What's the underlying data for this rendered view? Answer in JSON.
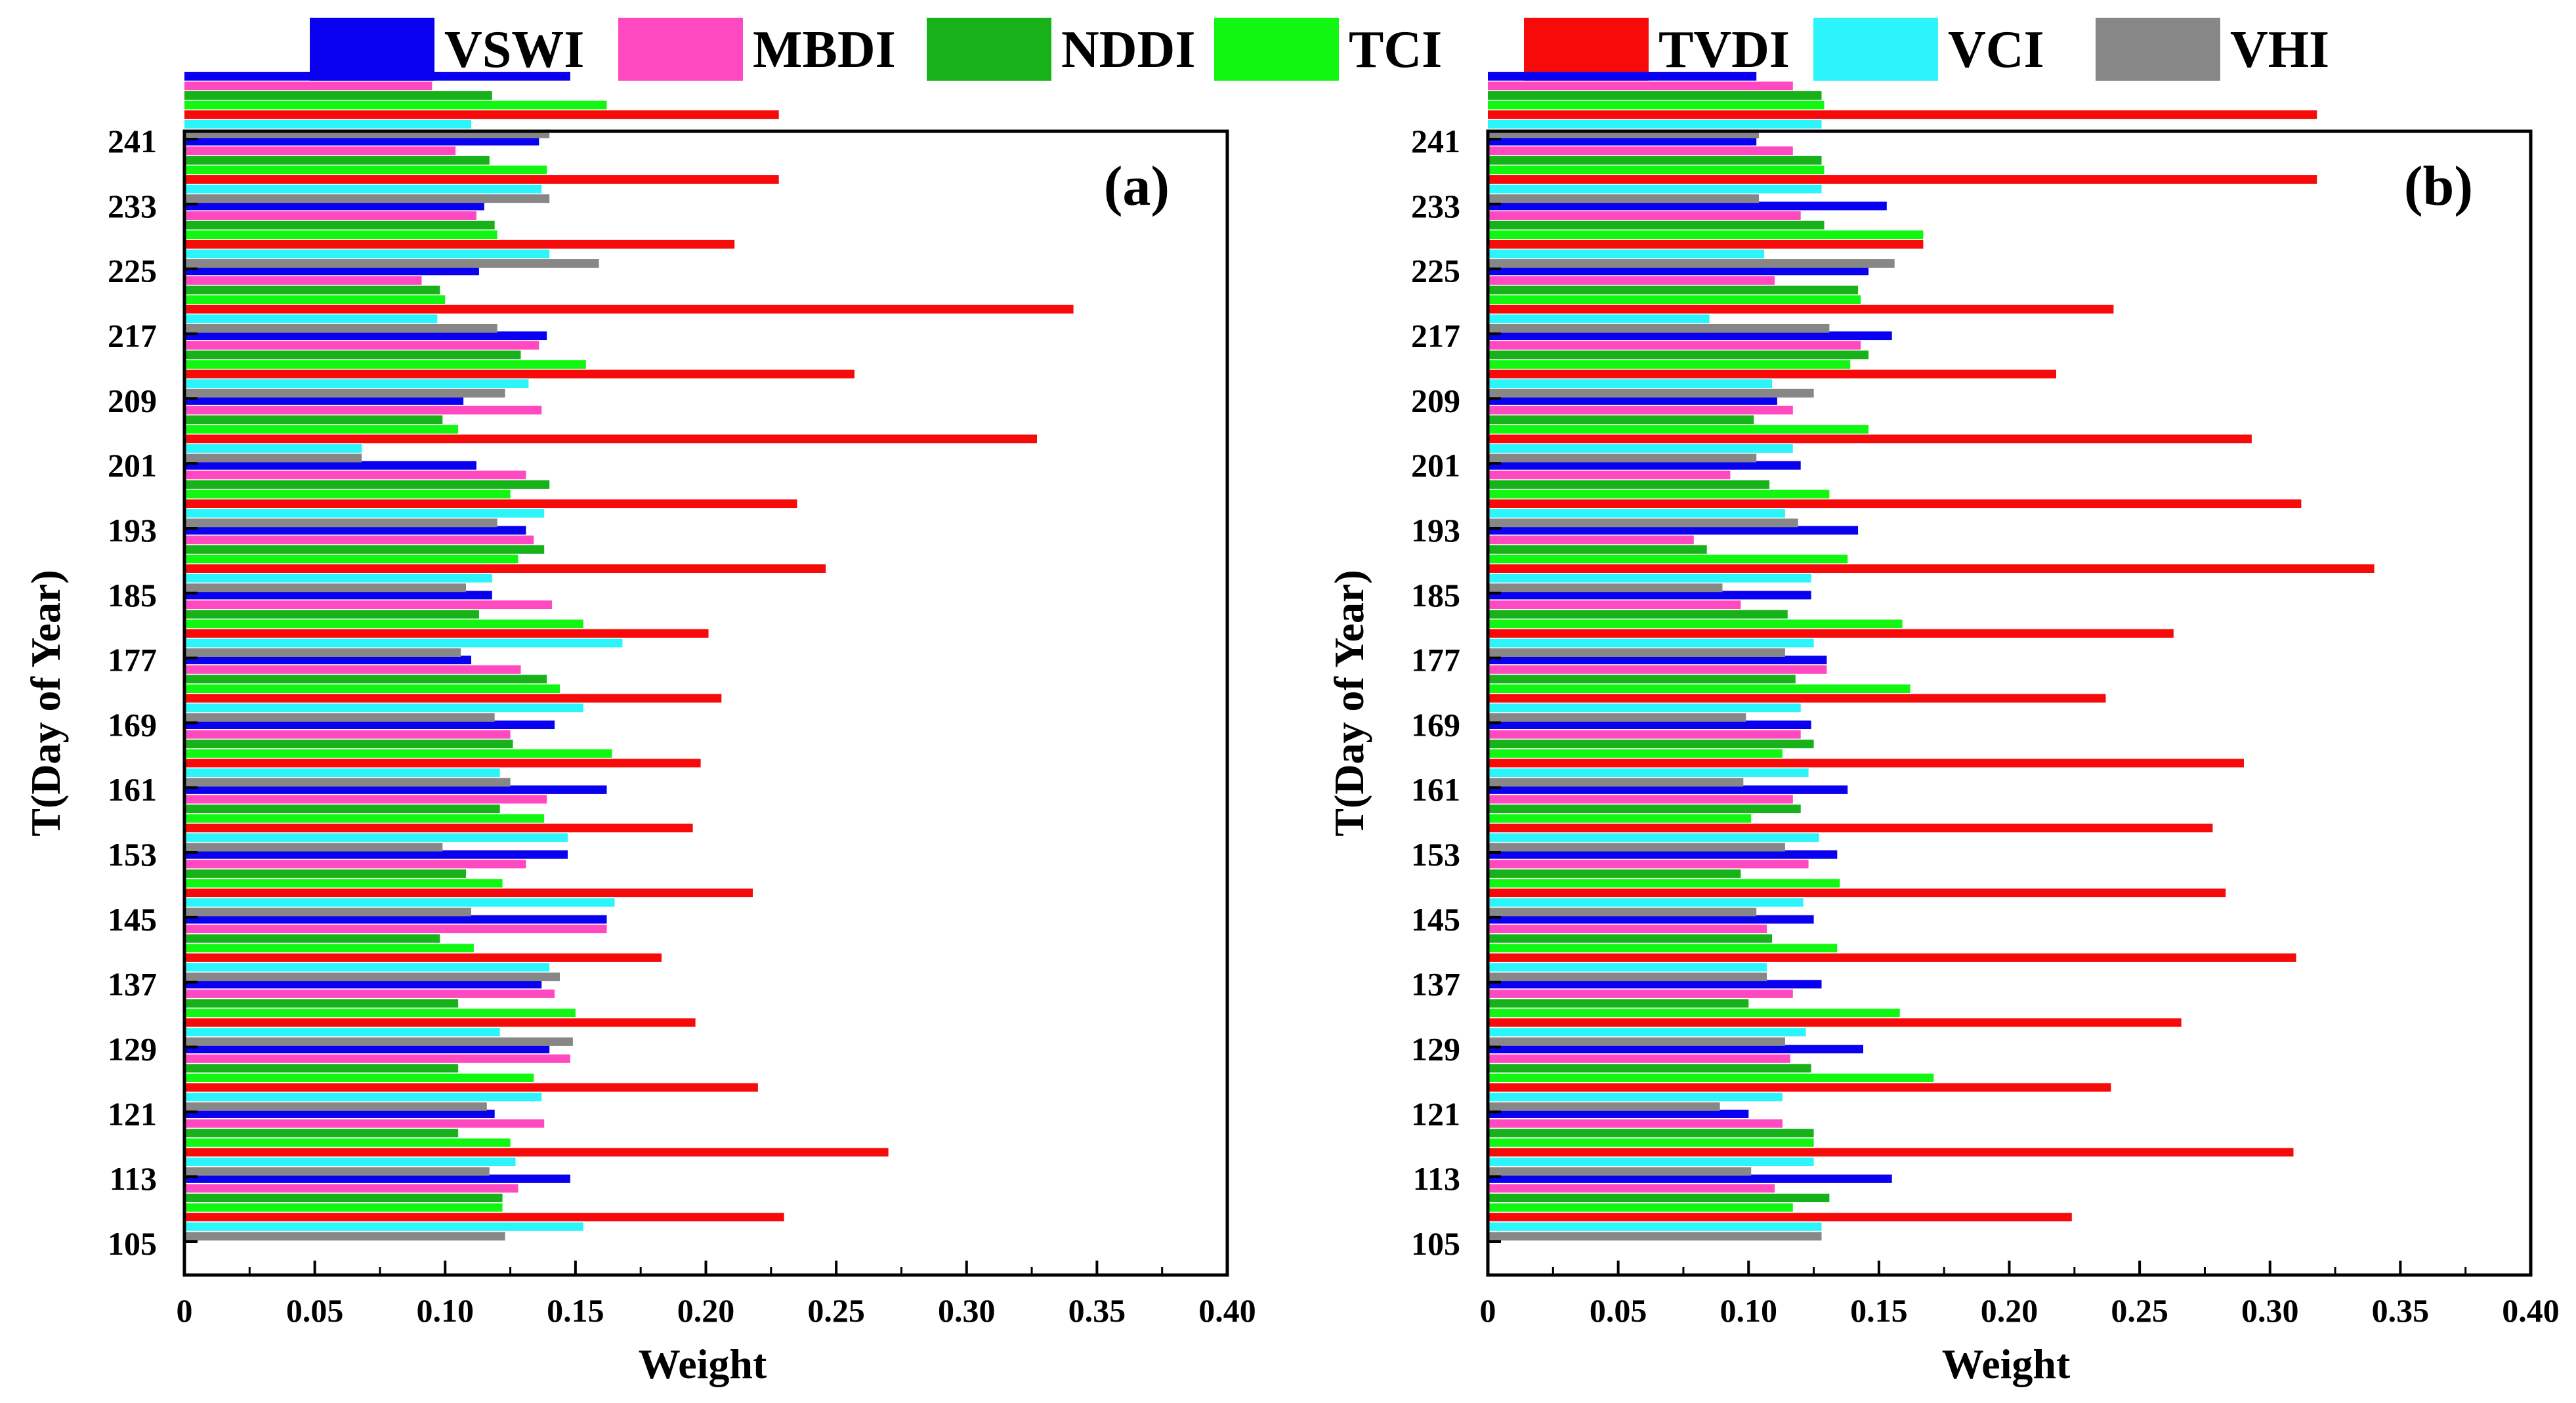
{
  "legend": [
    {
      "name": "VSWI",
      "color": "#0a00f0"
    },
    {
      "name": "MBDI",
      "color": "#ff49c0"
    },
    {
      "name": "NDDI",
      "color": "#17b21a"
    },
    {
      "name": "TCI",
      "color": "#12f712"
    },
    {
      "name": "TVDI",
      "color": "#f60a0a"
    },
    {
      "name": "VCI",
      "color": "#2cf4fb"
    },
    {
      "name": "VHI",
      "color": "#878787"
    }
  ],
  "chart_data": [
    {
      "type": "bar",
      "orientation": "horizontal",
      "panel_label": "(a)",
      "xlabel": "Weight",
      "ylabel": "T(Day of Year)",
      "xlim": [
        0,
        0.4
      ],
      "xticks": [
        "0",
        "0.05",
        "0.10",
        "0.15",
        "0.20",
        "0.25",
        "0.30",
        "0.35",
        "0.40"
      ],
      "categories": [
        "105",
        "113",
        "121",
        "129",
        "137",
        "145",
        "153",
        "161",
        "169",
        "177",
        "185",
        "193",
        "201",
        "209",
        "217",
        "225",
        "233",
        "241"
      ],
      "series": [
        {
          "name": "VSWI",
          "values": [
            0.148,
            0.119,
            0.14,
            0.137,
            0.162,
            0.147,
            0.162,
            0.142,
            0.11,
            0.118,
            0.131,
            0.112,
            0.107,
            0.139,
            0.113,
            0.115,
            0.136,
            0.148
          ]
        },
        {
          "name": "MBDI",
          "values": [
            0.128,
            0.138,
            0.148,
            0.142,
            0.162,
            0.131,
            0.139,
            0.125,
            0.129,
            0.141,
            0.134,
            0.131,
            0.137,
            0.136,
            0.091,
            0.112,
            0.104,
            0.095
          ]
        },
        {
          "name": "NDDI",
          "values": [
            0.122,
            0.105,
            0.105,
            0.105,
            0.098,
            0.108,
            0.121,
            0.126,
            0.139,
            0.113,
            0.138,
            0.14,
            0.099,
            0.129,
            0.098,
            0.119,
            0.117,
            0.118
          ]
        },
        {
          "name": "TCI",
          "values": [
            0.122,
            0.125,
            0.134,
            0.15,
            0.111,
            0.122,
            0.138,
            0.164,
            0.144,
            0.153,
            0.128,
            0.125,
            0.105,
            0.154,
            0.1,
            0.12,
            0.139,
            0.162
          ]
        },
        {
          "name": "TVDI",
          "values": [
            0.23,
            0.27,
            0.22,
            0.196,
            0.183,
            0.218,
            0.195,
            0.198,
            0.206,
            0.201,
            0.246,
            0.235,
            0.327,
            0.257,
            0.341,
            0.211,
            0.228,
            0.228
          ]
        },
        {
          "name": "VCI",
          "values": [
            0.153,
            0.127,
            0.137,
            0.121,
            0.14,
            0.165,
            0.147,
            0.121,
            0.153,
            0.168,
            0.118,
            0.138,
            0.068,
            0.132,
            0.097,
            0.14,
            0.137,
            0.11
          ]
        },
        {
          "name": "VHI",
          "values": [
            0.123,
            0.117,
            0.116,
            0.149,
            0.144,
            0.11,
            0.099,
            0.125,
            0.119,
            0.106,
            0.108,
            0.12,
            0.068,
            0.123,
            0.12,
            0.159,
            0.14,
            0.14
          ]
        }
      ]
    },
    {
      "type": "bar",
      "orientation": "horizontal",
      "panel_label": "(b)",
      "xlabel": "Weight",
      "ylabel": "T(Day of Year)",
      "xlim": [
        0,
        0.4
      ],
      "xticks": [
        "0",
        "0.05",
        "0.10",
        "0.15",
        "0.20",
        "0.25",
        "0.30",
        "0.35",
        "0.40"
      ],
      "categories": [
        "105",
        "113",
        "121",
        "129",
        "137",
        "145",
        "153",
        "161",
        "169",
        "177",
        "185",
        "193",
        "201",
        "209",
        "217",
        "225",
        "233",
        "241"
      ],
      "series": [
        {
          "name": "VSWI",
          "values": [
            0.155,
            0.1,
            0.144,
            0.128,
            0.125,
            0.134,
            0.138,
            0.124,
            0.13,
            0.124,
            0.142,
            0.12,
            0.111,
            0.155,
            0.146,
            0.153,
            0.103,
            0.103
          ]
        },
        {
          "name": "MBDI",
          "values": [
            0.11,
            0.113,
            0.116,
            0.117,
            0.107,
            0.123,
            0.117,
            0.12,
            0.13,
            0.097,
            0.079,
            0.093,
            0.117,
            0.143,
            0.11,
            0.12,
            0.117,
            0.117
          ]
        },
        {
          "name": "NDDI",
          "values": [
            0.131,
            0.125,
            0.124,
            0.1,
            0.109,
            0.097,
            0.12,
            0.125,
            0.118,
            0.115,
            0.084,
            0.108,
            0.102,
            0.146,
            0.142,
            0.129,
            0.128,
            0.128
          ]
        },
        {
          "name": "TCI",
          "values": [
            0.117,
            0.125,
            0.171,
            0.158,
            0.134,
            0.135,
            0.101,
            0.113,
            0.162,
            0.159,
            0.138,
            0.131,
            0.146,
            0.139,
            0.143,
            0.167,
            0.129,
            0.129
          ]
        },
        {
          "name": "TVDI",
          "values": [
            0.224,
            0.309,
            0.239,
            0.266,
            0.31,
            0.283,
            0.278,
            0.29,
            0.237,
            0.263,
            0.34,
            0.312,
            0.293,
            0.218,
            0.24,
            0.167,
            0.318,
            0.318
          ]
        },
        {
          "name": "VCI",
          "values": [
            0.128,
            0.125,
            0.113,
            0.122,
            0.107,
            0.121,
            0.127,
            0.123,
            0.12,
            0.125,
            0.124,
            0.114,
            0.117,
            0.109,
            0.085,
            0.106,
            0.128,
            0.128
          ]
        },
        {
          "name": "VHI",
          "values": [
            0.128,
            0.101,
            0.089,
            0.114,
            0.107,
            0.103,
            0.114,
            0.098,
            0.099,
            0.114,
            0.09,
            0.119,
            0.103,
            0.125,
            0.131,
            0.156,
            0.104,
            0.104
          ]
        }
      ]
    }
  ]
}
